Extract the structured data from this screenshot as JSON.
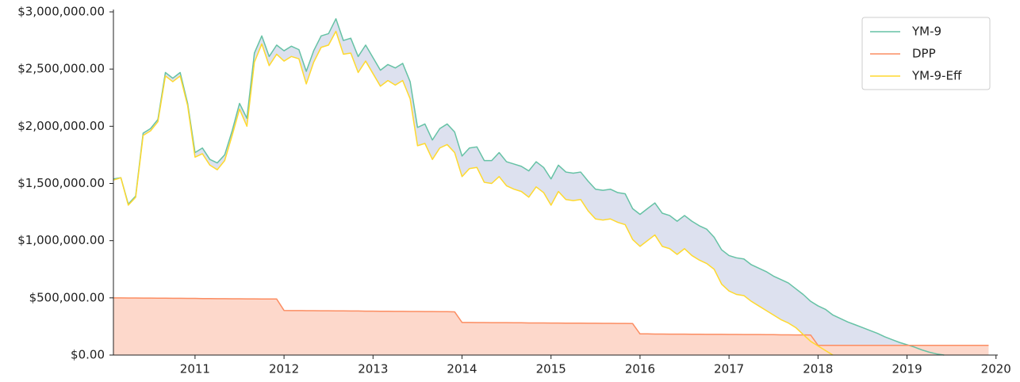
{
  "chart_data": {
    "type": "line",
    "x": [
      2010.083,
      2010.167,
      2010.25,
      2010.333,
      2010.417,
      2010.5,
      2010.583,
      2010.667,
      2010.75,
      2010.833,
      2010.917,
      2011,
      2011.083,
      2011.167,
      2011.25,
      2011.333,
      2011.417,
      2011.5,
      2011.583,
      2011.667,
      2011.75,
      2011.833,
      2011.917,
      2012,
      2012.083,
      2012.167,
      2012.25,
      2012.333,
      2012.417,
      2012.5,
      2012.583,
      2012.667,
      2012.75,
      2012.833,
      2012.917,
      2013,
      2013.083,
      2013.167,
      2013.25,
      2013.333,
      2013.417,
      2013.5,
      2013.583,
      2013.667,
      2013.75,
      2013.833,
      2013.917,
      2014,
      2014.083,
      2014.167,
      2014.25,
      2014.333,
      2014.417,
      2014.5,
      2014.583,
      2014.667,
      2014.75,
      2014.833,
      2014.917,
      2015,
      2015.083,
      2015.167,
      2015.25,
      2015.333,
      2015.417,
      2015.5,
      2015.583,
      2015.667,
      2015.75,
      2015.833,
      2015.917,
      2016,
      2016.083,
      2016.167,
      2016.25,
      2016.333,
      2016.417,
      2016.5,
      2016.583,
      2016.667,
      2016.75,
      2016.833,
      2016.917,
      2017,
      2017.083,
      2017.167,
      2017.25,
      2017.333,
      2017.417,
      2017.5,
      2017.583,
      2017.667,
      2017.75,
      2017.833,
      2017.917,
      2018,
      2018.083,
      2018.167,
      2018.25,
      2018.333,
      2018.417,
      2018.5,
      2018.583,
      2018.667,
      2018.75,
      2018.833,
      2018.917,
      2019,
      2019.083,
      2019.167,
      2019.25,
      2019.333,
      2019.417,
      2019.5,
      2019.583,
      2019.667,
      2019.75,
      2019.833,
      2019.917
    ],
    "series": [
      {
        "name": "YM-9",
        "color": "#66c2a5",
        "values": [
          1540000,
          1550000,
          1320000,
          1390000,
          1940000,
          1980000,
          2060000,
          2470000,
          2420000,
          2470000,
          2200000,
          1770000,
          1810000,
          1710000,
          1680000,
          1750000,
          1960000,
          2200000,
          2070000,
          2640000,
          2790000,
          2610000,
          2710000,
          2660000,
          2700000,
          2670000,
          2480000,
          2660000,
          2790000,
          2810000,
          2940000,
          2750000,
          2770000,
          2610000,
          2710000,
          2600000,
          2490000,
          2540000,
          2510000,
          2550000,
          2390000,
          1990000,
          2020000,
          1880000,
          1980000,
          2020000,
          1950000,
          1740000,
          1810000,
          1820000,
          1700000,
          1700000,
          1770000,
          1690000,
          1670000,
          1650000,
          1610000,
          1690000,
          1640000,
          1540000,
          1660000,
          1600000,
          1590000,
          1600000,
          1520000,
          1450000,
          1440000,
          1450000,
          1420000,
          1410000,
          1280000,
          1230000,
          1280000,
          1330000,
          1240000,
          1220000,
          1170000,
          1220000,
          1170000,
          1130000,
          1100000,
          1030000,
          920000,
          870000,
          850000,
          840000,
          790000,
          760000,
          730000,
          690000,
          660000,
          630000,
          580000,
          530000,
          470000,
          430000,
          400000,
          350000,
          320000,
          290000,
          265000,
          240000,
          215000,
          190000,
          160000,
          135000,
          110000,
          90000,
          70000,
          45000,
          25000,
          10000,
          0,
          null,
          null,
          null,
          null,
          null,
          null
        ]
      },
      {
        "name": "DPP",
        "color": "#fc8d62",
        "fill": "#fdd8cb",
        "values": [
          500000,
          500000,
          499000,
          499000,
          498000,
          498000,
          497000,
          497000,
          496000,
          496000,
          495000,
          495000,
          494000,
          494000,
          493000,
          493000,
          492000,
          492000,
          491000,
          491000,
          490000,
          490000,
          490000,
          390000,
          389000,
          389000,
          388000,
          388000,
          387000,
          387000,
          386000,
          386000,
          385000,
          385000,
          384000,
          384000,
          383000,
          383000,
          382000,
          382000,
          381000,
          381000,
          380000,
          380000,
          379000,
          379000,
          378000,
          285000,
          285000,
          284000,
          284000,
          283000,
          283000,
          283000,
          282000,
          282000,
          281000,
          281000,
          281000,
          280000,
          280000,
          279000,
          279000,
          279000,
          278000,
          278000,
          277000,
          277000,
          276000,
          276000,
          275000,
          185000,
          185000,
          184000,
          184000,
          183000,
          183000,
          183000,
          182000,
          182000,
          181000,
          181000,
          181000,
          180000,
          180000,
          179000,
          179000,
          179000,
          178000,
          178000,
          177000,
          177000,
          176000,
          176000,
          175000,
          85000,
          85000,
          85000,
          85000,
          85000,
          85000,
          85000,
          85000,
          85000,
          85000,
          85000,
          85000,
          85000,
          85000,
          85000,
          85000,
          85000,
          85000,
          85000,
          85000,
          85000,
          85000,
          85000,
          85000
        ]
      },
      {
        "name": "YM-9-Eff",
        "color": "#ffd92f",
        "values": [
          1530000,
          1550000,
          1310000,
          1380000,
          1920000,
          1960000,
          2040000,
          2440000,
          2390000,
          2440000,
          2180000,
          1730000,
          1760000,
          1660000,
          1620000,
          1700000,
          1920000,
          2150000,
          2000000,
          2560000,
          2720000,
          2530000,
          2630000,
          2570000,
          2610000,
          2590000,
          2370000,
          2560000,
          2690000,
          2710000,
          2830000,
          2630000,
          2640000,
          2470000,
          2570000,
          2460000,
          2350000,
          2400000,
          2360000,
          2400000,
          2240000,
          1830000,
          1850000,
          1710000,
          1810000,
          1840000,
          1770000,
          1560000,
          1630000,
          1640000,
          1510000,
          1500000,
          1560000,
          1480000,
          1450000,
          1430000,
          1380000,
          1470000,
          1420000,
          1310000,
          1430000,
          1360000,
          1350000,
          1360000,
          1260000,
          1190000,
          1180000,
          1190000,
          1160000,
          1140000,
          1010000,
          950000,
          1000000,
          1050000,
          950000,
          930000,
          880000,
          930000,
          870000,
          830000,
          800000,
          750000,
          620000,
          560000,
          530000,
          520000,
          470000,
          430000,
          390000,
          350000,
          310000,
          280000,
          240000,
          180000,
          120000,
          80000,
          40000,
          0,
          null,
          null,
          null,
          null,
          null,
          null,
          null,
          null,
          null,
          null,
          null,
          null,
          null,
          null,
          null,
          null,
          null,
          null,
          null,
          null,
          null
        ]
      }
    ],
    "fill_between": "#dde1ef",
    "xlim": [
      2010.083,
      2020.02
    ],
    "xticks": [
      2011,
      2012,
      2013,
      2014,
      2015,
      2016,
      2017,
      2018,
      2019,
      2020
    ],
    "ylim": [
      0,
      3000000
    ],
    "yticks": [
      {
        "value": 0,
        "label": "$0.00"
      },
      {
        "value": 500000,
        "label": "$500,000.00"
      },
      {
        "value": 1000000,
        "label": "$1,000,000.00"
      },
      {
        "value": 1500000,
        "label": "$1,500,000.00"
      },
      {
        "value": 2000000,
        "label": "$2,000,000.00"
      },
      {
        "value": 2500000,
        "label": "$2,500,000.00"
      },
      {
        "value": 3000000,
        "label": "$3,000,000.00"
      }
    ],
    "grid": false,
    "legend": "upper right"
  }
}
